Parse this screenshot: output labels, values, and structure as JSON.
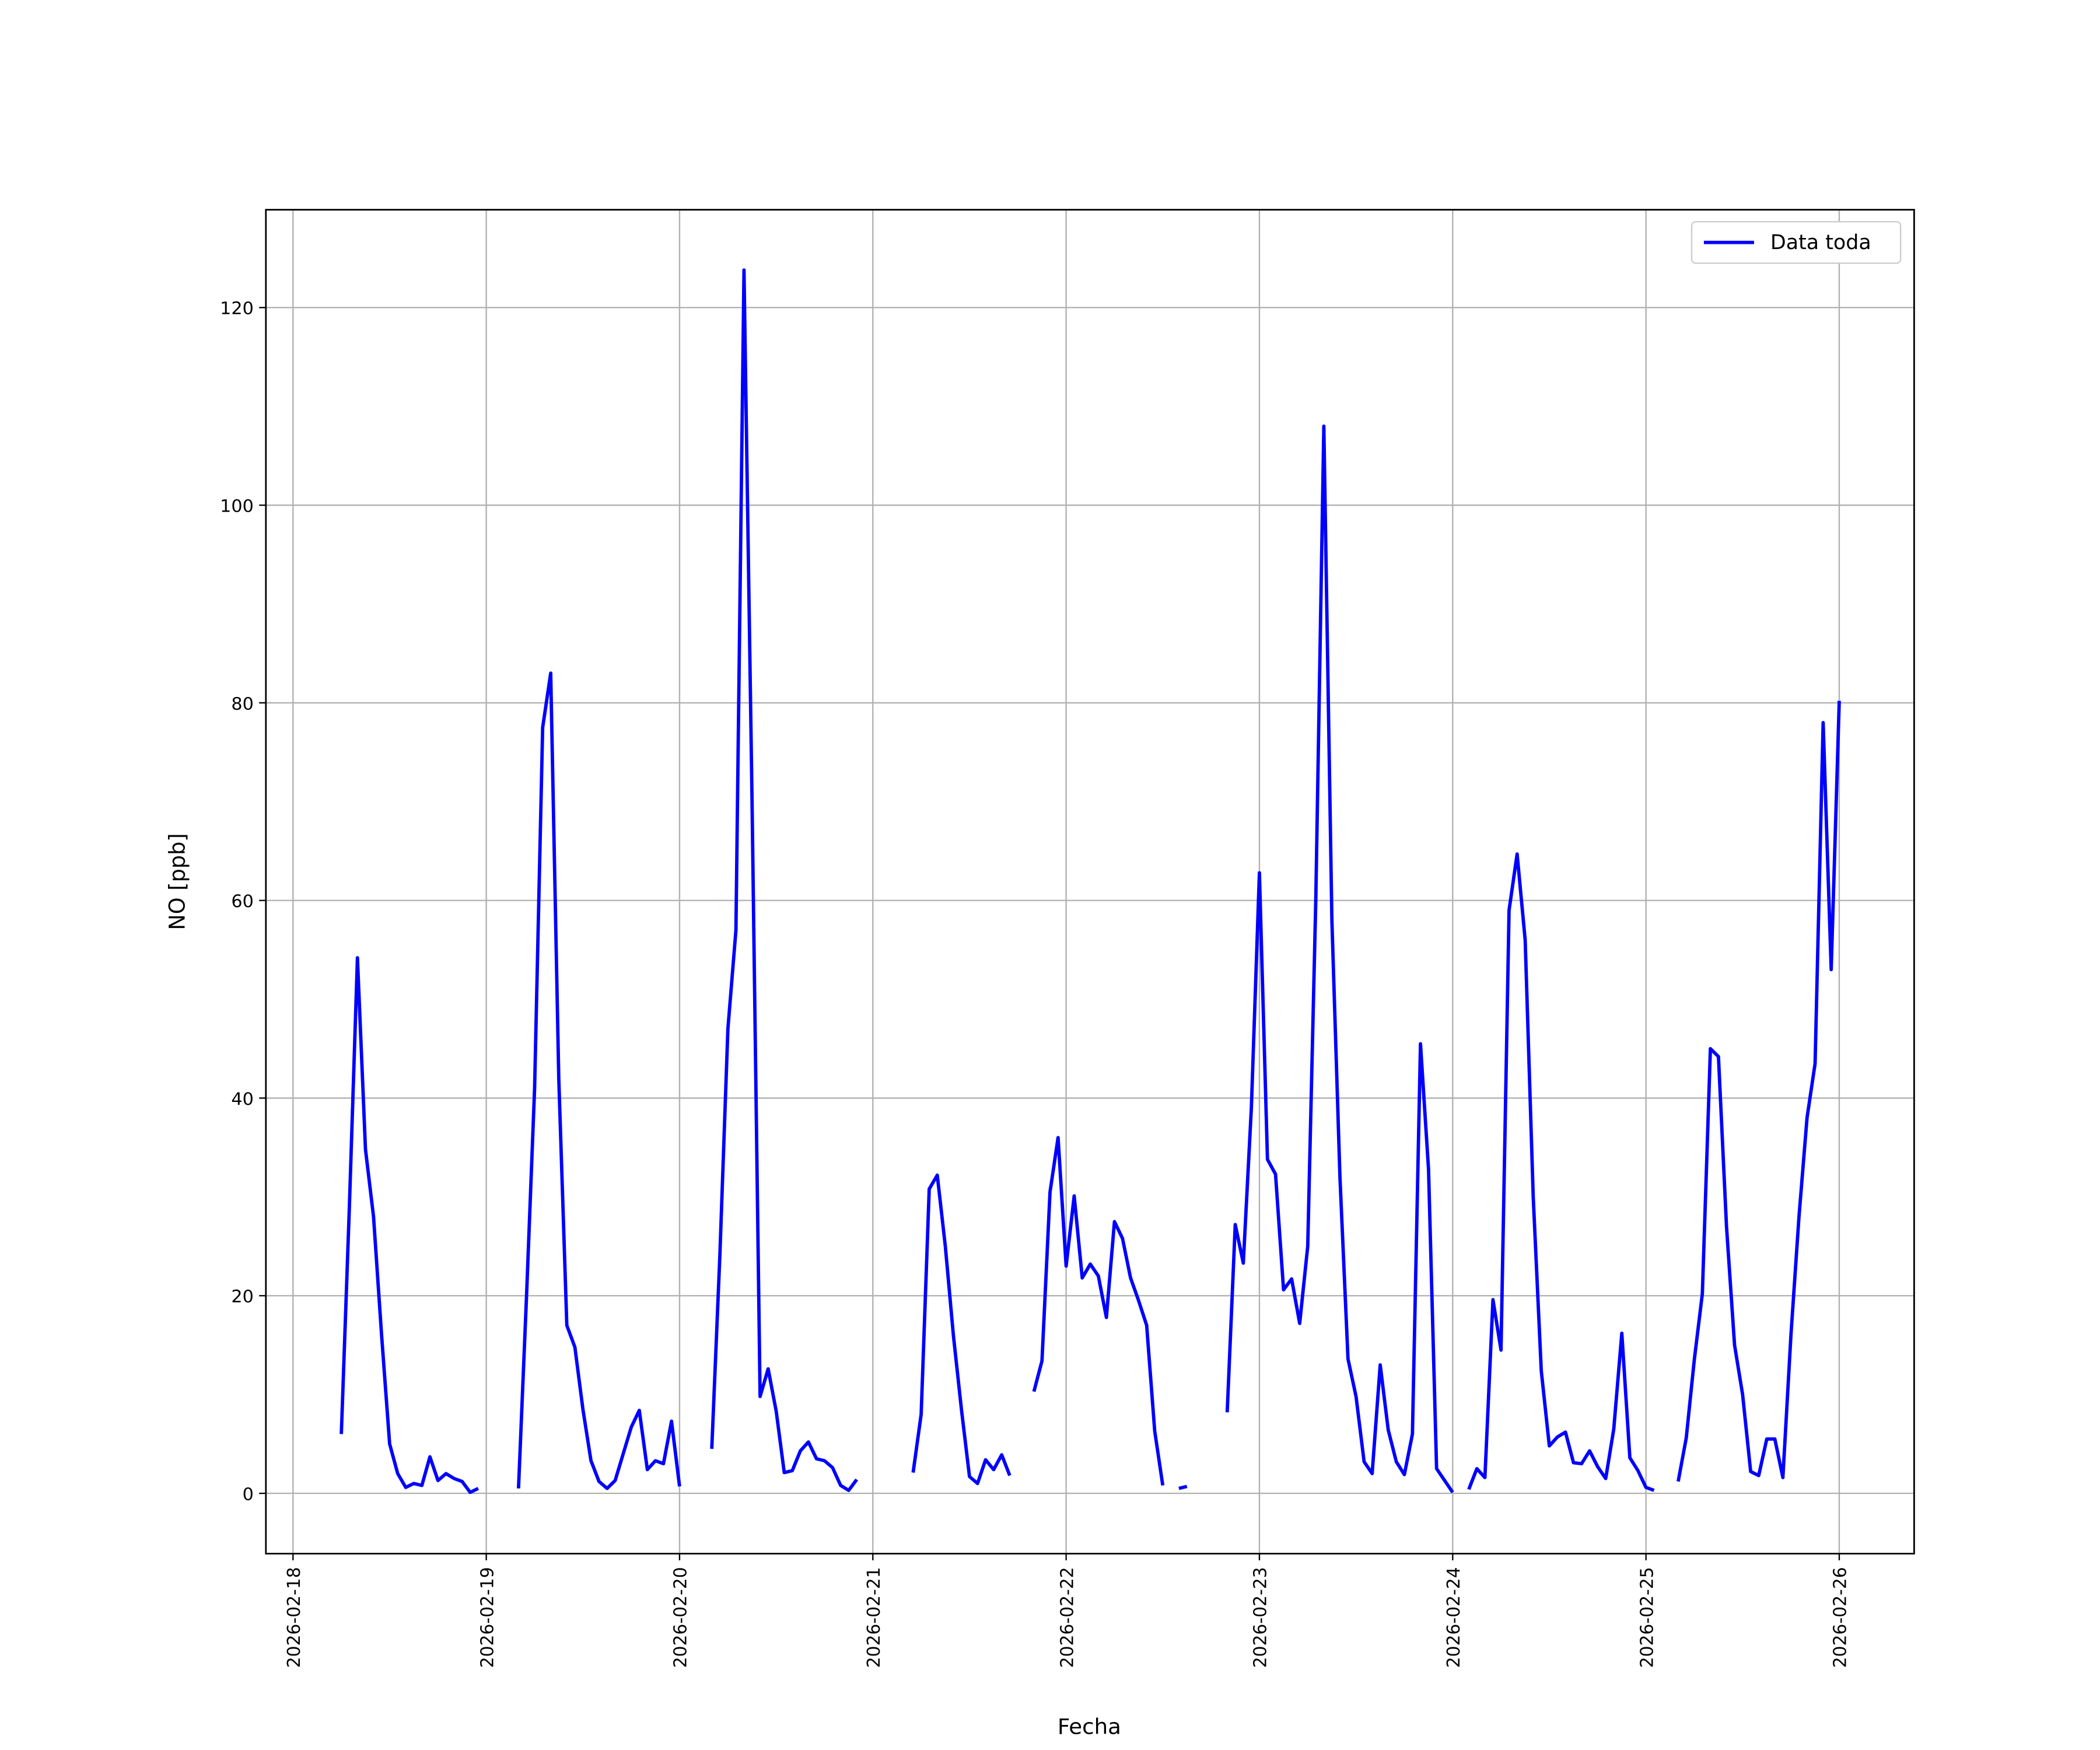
{
  "chart_data": {
    "type": "line",
    "xlabel": "Fecha",
    "ylabel": "NO [ppb]",
    "x": [
      "2026-02-18 06:00",
      "2026-02-18 07:00",
      "2026-02-18 08:00",
      "2026-02-18 09:00",
      "2026-02-18 10:00",
      "2026-02-18 11:00",
      "2026-02-18 12:00",
      "2026-02-18 13:00",
      "2026-02-18 14:00",
      "2026-02-18 15:00",
      "2026-02-18 16:00",
      "2026-02-18 17:00",
      "2026-02-18 18:00",
      "2026-02-18 19:00",
      "2026-02-18 20:00",
      "2026-02-18 21:00",
      "2026-02-18 22:00",
      "2026-02-18 23:00",
      "2026-02-19 00:00",
      "2026-02-19 01:00",
      "2026-02-19 02:00",
      "2026-02-19 03:00",
      "2026-02-19 04:00",
      "2026-02-19 05:00",
      "2026-02-19 06:00",
      "2026-02-19 07:00",
      "2026-02-19 08:00",
      "2026-02-19 09:00",
      "2026-02-19 10:00",
      "2026-02-19 11:00",
      "2026-02-19 12:00",
      "2026-02-19 13:00",
      "2026-02-19 14:00",
      "2026-02-19 15:00",
      "2026-02-19 16:00",
      "2026-02-19 17:00",
      "2026-02-19 18:00",
      "2026-02-19 19:00",
      "2026-02-19 20:00",
      "2026-02-19 21:00",
      "2026-02-19 22:00",
      "2026-02-19 23:00",
      "2026-02-20 00:00",
      "2026-02-20 01:00",
      "2026-02-20 02:00",
      "2026-02-20 03:00",
      "2026-02-20 04:00",
      "2026-02-20 05:00",
      "2026-02-20 06:00",
      "2026-02-20 07:00",
      "2026-02-20 08:00",
      "2026-02-20 09:00",
      "2026-02-20 10:00",
      "2026-02-20 11:00",
      "2026-02-20 12:00",
      "2026-02-20 13:00",
      "2026-02-20 14:00",
      "2026-02-20 15:00",
      "2026-02-20 16:00",
      "2026-02-20 17:00",
      "2026-02-20 18:00",
      "2026-02-20 19:00",
      "2026-02-20 20:00",
      "2026-02-20 21:00",
      "2026-02-20 22:00",
      "2026-02-20 23:00",
      "2026-02-21 00:00",
      "2026-02-21 01:00",
      "2026-02-21 02:00",
      "2026-02-21 03:00",
      "2026-02-21 04:00",
      "2026-02-21 05:00",
      "2026-02-21 06:00",
      "2026-02-21 07:00",
      "2026-02-21 08:00",
      "2026-02-21 09:00",
      "2026-02-21 10:00",
      "2026-02-21 11:00",
      "2026-02-21 12:00",
      "2026-02-21 13:00",
      "2026-02-21 14:00",
      "2026-02-21 15:00",
      "2026-02-21 16:00",
      "2026-02-21 17:00",
      "2026-02-21 18:00",
      "2026-02-21 19:00",
      "2026-02-21 20:00",
      "2026-02-21 21:00",
      "2026-02-21 22:00",
      "2026-02-21 23:00",
      "2026-02-22 00:00",
      "2026-02-22 01:00",
      "2026-02-22 02:00",
      "2026-02-22 03:00",
      "2026-02-22 04:00",
      "2026-02-22 05:00",
      "2026-02-22 06:00",
      "2026-02-22 07:00",
      "2026-02-22 08:00",
      "2026-02-22 09:00",
      "2026-02-22 10:00",
      "2026-02-22 11:00",
      "2026-02-22 12:00",
      "2026-02-22 13:00",
      "2026-02-22 14:00",
      "2026-02-22 15:00",
      "2026-02-22 16:00",
      "2026-02-22 17:00",
      "2026-02-22 18:00",
      "2026-02-22 19:00",
      "2026-02-22 20:00",
      "2026-02-22 21:00",
      "2026-02-22 22:00",
      "2026-02-22 23:00",
      "2026-02-23 00:00",
      "2026-02-23 01:00",
      "2026-02-23 02:00",
      "2026-02-23 03:00",
      "2026-02-23 04:00",
      "2026-02-23 05:00",
      "2026-02-23 06:00",
      "2026-02-23 07:00",
      "2026-02-23 08:00",
      "2026-02-23 09:00",
      "2026-02-23 10:00",
      "2026-02-23 11:00",
      "2026-02-23 12:00",
      "2026-02-23 13:00",
      "2026-02-23 14:00",
      "2026-02-23 15:00",
      "2026-02-23 16:00",
      "2026-02-23 17:00",
      "2026-02-23 18:00",
      "2026-02-23 19:00",
      "2026-02-23 20:00",
      "2026-02-23 21:00",
      "2026-02-23 22:00",
      "2026-02-23 23:00",
      "2026-02-24 00:00",
      "2026-02-24 01:00",
      "2026-02-24 02:00",
      "2026-02-24 03:00",
      "2026-02-24 04:00",
      "2026-02-24 05:00",
      "2026-02-24 06:00",
      "2026-02-24 07:00",
      "2026-02-24 08:00",
      "2026-02-24 09:00",
      "2026-02-24 10:00",
      "2026-02-24 11:00",
      "2026-02-24 12:00",
      "2026-02-24 13:00",
      "2026-02-24 14:00",
      "2026-02-24 15:00",
      "2026-02-24 16:00",
      "2026-02-24 17:00",
      "2026-02-24 18:00",
      "2026-02-24 19:00",
      "2026-02-24 20:00",
      "2026-02-24 21:00",
      "2026-02-24 22:00",
      "2026-02-24 23:00",
      "2026-02-25 00:00",
      "2026-02-25 01:00",
      "2026-02-25 02:00",
      "2026-02-25 03:00",
      "2026-02-25 04:00",
      "2026-02-25 05:00",
      "2026-02-25 06:00",
      "2026-02-25 07:00",
      "2026-02-25 08:00",
      "2026-02-25 09:00",
      "2026-02-25 10:00",
      "2026-02-25 11:00",
      "2026-02-25 12:00",
      "2026-02-25 13:00",
      "2026-02-25 14:00",
      "2026-02-25 15:00",
      "2026-02-25 16:00",
      "2026-02-25 17:00",
      "2026-02-25 18:00",
      "2026-02-25 19:00",
      "2026-02-25 20:00",
      "2026-02-25 21:00",
      "2026-02-25 22:00",
      "2026-02-25 23:00",
      "2026-02-26 00:00"
    ],
    "series": [
      {
        "name": "Data toda",
        "color": "#0000ff",
        "values": [
          6.0,
          29,
          54.2,
          34.8,
          28,
          16,
          5,
          2,
          0.6,
          1,
          0.8,
          3.7,
          1.3,
          2.0,
          1.5,
          1.2,
          0.1,
          0.5,
          null,
          null,
          null,
          null,
          0.5,
          20,
          41,
          77.5,
          83,
          42,
          17,
          14.8,
          8.5,
          3.3,
          1.2,
          0.5,
          1.3,
          4,
          6.7,
          8.4,
          2.4,
          3.3,
          3.0,
          7.3,
          0.7,
          null,
          null,
          null,
          4.5,
          24,
          47,
          57,
          123.8,
          70,
          9.8,
          12.6,
          8.3,
          2.1,
          2.3,
          4.3,
          5.2,
          3.5,
          3.3,
          2.6,
          0.8,
          0.3,
          1.4,
          null,
          null,
          null,
          null,
          null,
          null,
          2.1,
          8,
          30.8,
          32.2,
          25,
          16,
          8.5,
          1.7,
          1.0,
          3.4,
          2.4,
          3.9,
          1.8,
          null,
          null,
          10.3,
          13.4,
          30.5,
          36,
          23,
          30.1,
          21.8,
          23.2,
          22,
          17.8,
          27.5,
          25.8,
          21.8,
          19.5,
          17,
          6.3,
          0.8,
          null,
          0.5,
          0.7,
          null,
          null,
          null,
          null,
          8.2,
          27.2,
          23.3,
          39,
          62.8,
          33.8,
          32.3,
          20.6,
          21.7,
          17.2,
          25,
          60,
          108,
          58,
          32,
          13.6,
          9.8,
          3.2,
          2.0,
          13.0,
          6.4,
          3.2,
          1.9,
          6.0,
          45.5,
          32.8,
          2.5,
          1.3,
          0.1,
          null,
          0.4,
          2.5,
          1.6,
          19.6,
          14.5,
          59,
          64.7,
          56,
          30,
          12.4,
          4.8,
          5.7,
          6.2,
          3.1,
          3.0,
          4.3,
          2.7,
          1.5,
          6.5,
          16.2,
          3.6,
          2.3,
          0.6,
          0.3,
          null,
          null,
          1.2,
          5.6,
          13.5,
          20.2,
          45,
          44.2,
          27,
          15,
          10,
          2.2,
          1.8,
          5.5,
          5.5,
          1.6,
          16,
          28,
          38,
          43.5,
          78,
          53,
          80.2
        ]
      }
    ],
    "xlim": [
      "2026-02-17 20:38",
      "2026-02-26 09:18"
    ],
    "xticks": [
      "2026-02-18",
      "2026-02-19",
      "2026-02-20",
      "2026-02-21",
      "2026-02-22",
      "2026-02-23",
      "2026-02-24",
      "2026-02-25",
      "2026-02-26"
    ],
    "ylim": [
      -6.1,
      129.9
    ],
    "yticks": [
      0,
      20,
      40,
      60,
      80,
      100,
      120
    ],
    "grid": true,
    "legend": "upper right"
  }
}
